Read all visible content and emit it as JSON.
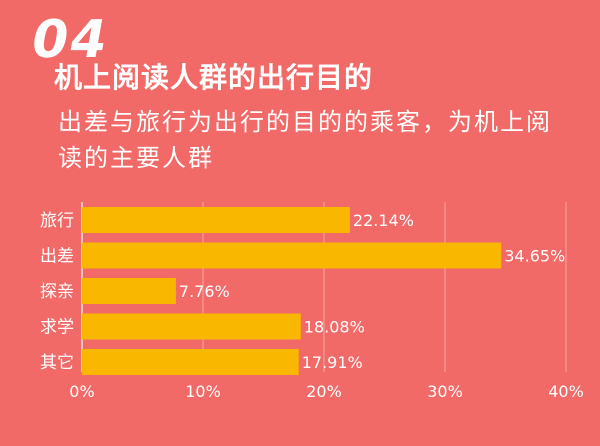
{
  "header": {
    "section_number": "04",
    "title": "机上阅读人群的出行目的",
    "subtitle": "出差与旅行为出行的目的的乘客，为机上阅读的主要人群"
  },
  "colors": {
    "background": "#f16a68",
    "bar": "#f9b700",
    "text": "#ffffff",
    "gridline": "#f6a5a1"
  },
  "chart_data": {
    "type": "bar",
    "orientation": "horizontal",
    "categories": [
      "旅行",
      "出差",
      "探亲",
      "求学",
      "其它"
    ],
    "values": [
      22.14,
      34.65,
      7.76,
      18.08,
      17.91
    ],
    "value_labels": [
      "22.14%",
      "34.65%",
      "7.76%",
      "18.08%",
      "17.91%"
    ],
    "x_ticks": [
      "0%",
      "10%",
      "20%",
      "30%",
      "40%"
    ],
    "xlim": [
      0,
      40
    ],
    "grid": true,
    "title": "",
    "xlabel": "",
    "ylabel": ""
  }
}
